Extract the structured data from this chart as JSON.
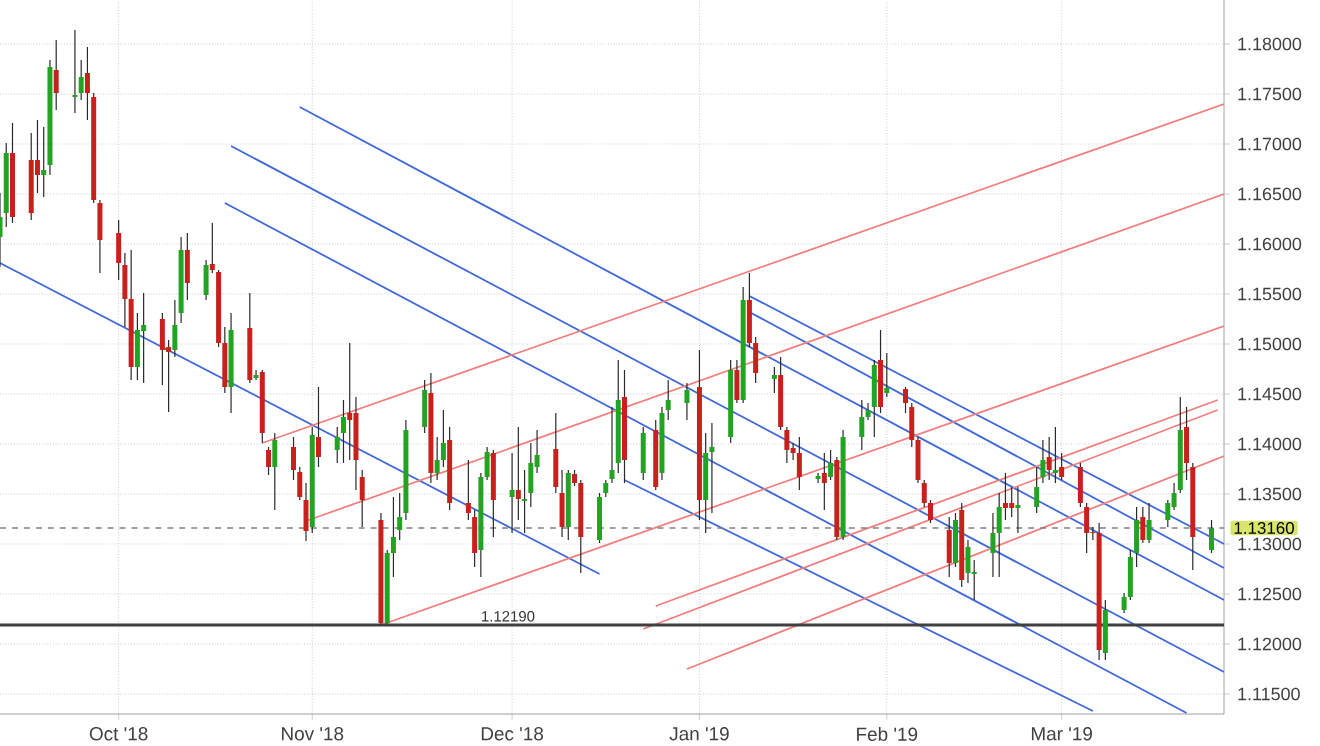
{
  "chart_data": {
    "type": "candlestick",
    "x": [
      "2018-09-12",
      "2018-09-13",
      "2018-09-14",
      "2018-09-17",
      "2018-09-18",
      "2018-09-19",
      "2018-09-20",
      "2018-09-21",
      "2018-09-24",
      "2018-09-25",
      "2018-09-26",
      "2018-09-27",
      "2018-09-28",
      "2018-10-01",
      "2018-10-02",
      "2018-10-03",
      "2018-10-04",
      "2018-10-05",
      "2018-10-08",
      "2018-10-09",
      "2018-10-10",
      "2018-10-11",
      "2018-10-12",
      "2018-10-15",
      "2018-10-16",
      "2018-10-17",
      "2018-10-18",
      "2018-10-19",
      "2018-10-22",
      "2018-10-23",
      "2018-10-24",
      "2018-10-25",
      "2018-10-26",
      "2018-10-29",
      "2018-10-30",
      "2018-10-31",
      "2018-11-01",
      "2018-11-02",
      "2018-11-05",
      "2018-11-06",
      "2018-11-07",
      "2018-11-08",
      "2018-11-09",
      "2018-11-12",
      "2018-11-13",
      "2018-11-14",
      "2018-11-15",
      "2018-11-16",
      "2018-11-19",
      "2018-11-20",
      "2018-11-21",
      "2018-11-22",
      "2018-11-23",
      "2018-11-26",
      "2018-11-27",
      "2018-11-28",
      "2018-11-29",
      "2018-11-30",
      "2018-12-03",
      "2018-12-04",
      "2018-12-05",
      "2018-12-06",
      "2018-12-07",
      "2018-12-10",
      "2018-12-11",
      "2018-12-12",
      "2018-12-13",
      "2018-12-14",
      "2018-12-17",
      "2018-12-18",
      "2018-12-19",
      "2018-12-20",
      "2018-12-21",
      "2018-12-24",
      "2018-12-26",
      "2018-12-27",
      "2018-12-28",
      "2018-12-31",
      "2019-01-02",
      "2019-01-03",
      "2019-01-04",
      "2019-01-07",
      "2019-01-08",
      "2019-01-09",
      "2019-01-10",
      "2019-01-11",
      "2019-01-14",
      "2019-01-15",
      "2019-01-16",
      "2019-01-17",
      "2019-01-18",
      "2019-01-21",
      "2019-01-22",
      "2019-01-23",
      "2019-01-24",
      "2019-01-25",
      "2019-01-28",
      "2019-01-29",
      "2019-01-30",
      "2019-01-31",
      "2019-02-01",
      "2019-02-04",
      "2019-02-05",
      "2019-02-06",
      "2019-02-07",
      "2019-02-08",
      "2019-02-11",
      "2019-02-12",
      "2019-02-13",
      "2019-02-14",
      "2019-02-15",
      "2019-02-18",
      "2019-02-19",
      "2019-02-20",
      "2019-02-21",
      "2019-02-22",
      "2019-02-25",
      "2019-02-26",
      "2019-02-27",
      "2019-02-28",
      "2019-03-01",
      "2019-03-04",
      "2019-03-05",
      "2019-03-06",
      "2019-03-07",
      "2019-03-08",
      "2019-03-11",
      "2019-03-12",
      "2019-03-13",
      "2019-03-14",
      "2019-03-15",
      "2019-03-18",
      "2019-03-19",
      "2019-03-20",
      "2019-03-21",
      "2019-03-22",
      "2019-03-25"
    ],
    "ohlc": [
      [
        1.1607,
        1.1651,
        1.1577,
        1.1627
      ],
      [
        1.1631,
        1.1701,
        1.1617,
        1.1691
      ],
      [
        1.1691,
        1.1721,
        1.1621,
        1.1627
      ],
      [
        1.1684,
        1.1711,
        1.1624,
        1.1631
      ],
      [
        1.1684,
        1.1724,
        1.1651,
        1.1669
      ],
      [
        1.1669,
        1.1717,
        1.1647,
        1.1674
      ],
      [
        1.1679,
        1.1784,
        1.1669,
        1.1777
      ],
      [
        1.1774,
        1.1804,
        1.1734,
        1.1751
      ],
      [
        1.1747,
        1.1814,
        1.1731,
        1.1749
      ],
      [
        1.1751,
        1.1784,
        1.1744,
        1.1767
      ],
      [
        1.1771,
        1.1797,
        1.1724,
        1.1751
      ],
      [
        1.1747,
        1.1751,
        1.1641,
        1.1644
      ],
      [
        1.1641,
        1.1644,
        1.1571,
        1.1604
      ],
      [
        1.1611,
        1.1624,
        1.1564,
        1.1581
      ],
      [
        1.1579,
        1.1591,
        1.1517,
        1.1545
      ],
      [
        1.1545,
        1.1594,
        1.1464,
        1.1477
      ],
      [
        1.1477,
        1.1531,
        1.1464,
        1.1514
      ],
      [
        1.1513,
        1.1551,
        1.1461,
        1.1519
      ],
      [
        1.1525,
        1.1531,
        1.1459,
        1.1494
      ],
      [
        1.1497,
        1.1504,
        1.1432,
        1.1492
      ],
      [
        1.1494,
        1.1544,
        1.1487,
        1.1519
      ],
      [
        1.1531,
        1.1607,
        1.1521,
        1.1594
      ],
      [
        1.1594,
        1.1611,
        1.1544,
        1.1561
      ],
      [
        1.1549,
        1.1584,
        1.1544,
        1.1579
      ],
      [
        1.158,
        1.1621,
        1.1571,
        1.1574
      ],
      [
        1.1572,
        1.1574,
        1.1497,
        1.1501
      ],
      [
        1.1501,
        1.1517,
        1.1451,
        1.1457
      ],
      [
        1.1457,
        1.1531,
        1.1431,
        1.1514
      ],
      [
        1.1516,
        1.1551,
        1.1461,
        1.1464
      ],
      [
        1.1466,
        1.1474,
        1.1464,
        1.1469
      ],
      [
        1.1472,
        1.1474,
        1.1401,
        1.1411
      ],
      [
        1.1394,
        1.1397,
        1.1369,
        1.1377
      ],
      [
        1.1377,
        1.1411,
        1.1334,
        1.1404
      ],
      [
        1.1397,
        1.1407,
        1.1364,
        1.1374
      ],
      [
        1.1372,
        1.1377,
        1.1344,
        1.1347
      ],
      [
        1.1344,
        1.1361,
        1.1303,
        1.1313
      ],
      [
        1.1317,
        1.1417,
        1.1311,
        1.1409
      ],
      [
        1.1407,
        1.1457,
        1.1377,
        1.1387
      ],
      [
        1.1394,
        1.1417,
        1.1381,
        1.1407
      ],
      [
        1.1411,
        1.1444,
        1.1381,
        1.1427
      ],
      [
        1.1431,
        1.1501,
        1.1384,
        1.1424
      ],
      [
        1.1431,
        1.1447,
        1.1354,
        1.1384
      ],
      [
        1.1367,
        1.1374,
        1.1317,
        1.1344
      ],
      [
        1.1324,
        1.1331,
        1.1219,
        1.1221
      ],
      [
        1.1221,
        1.1294,
        1.122,
        1.1291
      ],
      [
        1.1291,
        1.1347,
        1.1267,
        1.1307
      ],
      [
        1.1314,
        1.1351,
        1.1304,
        1.1327
      ],
      [
        1.1331,
        1.1424,
        1.1324,
        1.1414
      ],
      [
        1.1417,
        1.1464,
        1.1411,
        1.1454
      ],
      [
        1.1451,
        1.1471,
        1.1361,
        1.1371
      ],
      [
        1.1371,
        1.1407,
        1.1364,
        1.1384
      ],
      [
        1.1384,
        1.1434,
        1.1377,
        1.1401
      ],
      [
        1.1404,
        1.1417,
        1.1334,
        1.1341
      ],
      [
        1.1341,
        1.1384,
        1.1324,
        1.1331
      ],
      [
        1.1327,
        1.1334,
        1.1277,
        1.1291
      ],
      [
        1.1294,
        1.1371,
        1.1267,
        1.1367
      ],
      [
        1.1367,
        1.1397,
        1.1364,
        1.1392
      ],
      [
        1.1391,
        1.1394,
        1.1307,
        1.1344
      ],
      [
        1.1347,
        1.1391,
        1.1311,
        1.1354
      ],
      [
        1.1354,
        1.1417,
        1.1324,
        1.1345
      ],
      [
        1.1343,
        1.1374,
        1.1311,
        1.1345
      ],
      [
        1.1351,
        1.1401,
        1.1337,
        1.1381
      ],
      [
        1.1377,
        1.1414,
        1.1371,
        1.1389
      ],
      [
        1.1395,
        1.1431,
        1.1351,
        1.1357
      ],
      [
        1.1351,
        1.1374,
        1.1307,
        1.1317
      ],
      [
        1.1317,
        1.1374,
        1.1304,
        1.1371
      ],
      [
        1.137,
        1.1374,
        1.1358,
        1.1361
      ],
      [
        1.1361,
        1.1364,
        1.1271,
        1.1307
      ],
      [
        1.1304,
        1.1351,
        1.1301,
        1.1347
      ],
      [
        1.1351,
        1.1364,
        1.1347,
        1.1361
      ],
      [
        1.1365,
        1.1437,
        1.1361,
        1.1374
      ],
      [
        1.1381,
        1.1484,
        1.1371,
        1.1444
      ],
      [
        1.1447,
        1.1474,
        1.1361,
        1.1384
      ],
      [
        1.1371,
        1.1417,
        1.1364,
        1.1411
      ],
      [
        1.1414,
        1.1424,
        1.1354,
        1.1357
      ],
      [
        1.1371,
        1.1437,
        1.1364,
        1.1431
      ],
      [
        1.1434,
        1.1464,
        1.1424,
        1.1444
      ],
      [
        1.1441,
        1.1461,
        1.1424,
        1.1454
      ],
      [
        1.1457,
        1.1494,
        1.1324,
        1.1344
      ],
      [
        1.1344,
        1.1411,
        1.1311,
        1.1391
      ],
      [
        1.1392,
        1.1421,
        1.1331,
        1.1397
      ],
      [
        1.1407,
        1.1484,
        1.1401,
        1.1474
      ],
      [
        1.1474,
        1.1484,
        1.1441,
        1.1444
      ],
      [
        1.1444,
        1.1557,
        1.1441,
        1.1544
      ],
      [
        1.1544,
        1.1571,
        1.1497,
        1.1501
      ],
      [
        1.1501,
        1.1507,
        1.1461,
        1.1471
      ],
      [
        1.1465,
        1.1477,
        1.1451,
        1.1469
      ],
      [
        1.1469,
        1.1487,
        1.1414,
        1.1417
      ],
      [
        1.1414,
        1.1417,
        1.1381,
        1.1394
      ],
      [
        1.1396,
        1.1401,
        1.1384,
        1.1391
      ],
      [
        1.1391,
        1.1407,
        1.1354,
        1.1367
      ],
      [
        1.1365,
        1.1371,
        1.1361,
        1.1368
      ],
      [
        1.1371,
        1.1391,
        1.1334,
        1.1361
      ],
      [
        1.1367,
        1.1394,
        1.1364,
        1.1381
      ],
      [
        1.1384,
        1.1387,
        1.1304,
        1.1307
      ],
      [
        1.1307,
        1.1414,
        1.1304,
        1.1407
      ],
      [
        1.1407,
        1.1444,
        1.1394,
        1.1427
      ],
      [
        1.1427,
        1.1441,
        1.1424,
        1.1434
      ],
      [
        1.1437,
        1.1484,
        1.1407,
        1.1479
      ],
      [
        1.1484,
        1.1514,
        1.1431,
        1.1437
      ],
      [
        1.1451,
        1.1491,
        1.1447,
        1.1456
      ],
      [
        1.1455,
        1.1457,
        1.1431,
        1.1441
      ],
      [
        1.1437,
        1.1441,
        1.1397,
        1.1404
      ],
      [
        1.1404,
        1.1407,
        1.1361,
        1.1364
      ],
      [
        1.1361,
        1.1364,
        1.1337,
        1.1341
      ],
      [
        1.1341,
        1.1344,
        1.1321,
        1.1324
      ],
      [
        1.1314,
        1.1327,
        1.1267,
        1.1281
      ],
      [
        1.1281,
        1.1331,
        1.1277,
        1.1324
      ],
      [
        1.1334,
        1.1341,
        1.1257,
        1.1264
      ],
      [
        1.1271,
        1.1304,
        1.1261,
        1.1297
      ],
      [
        1.127,
        1.1284,
        1.1244,
        1.1272
      ],
      [
        1.1291,
        1.1331,
        1.1267,
        1.1311
      ],
      [
        1.1311,
        1.1351,
        1.1267,
        1.1337
      ],
      [
        1.1341,
        1.1371,
        1.1324,
        1.1336
      ],
      [
        1.1341,
        1.1357,
        1.1327,
        1.1336
      ],
      [
        1.1336,
        1.1357,
        1.1311,
        1.1339
      ],
      [
        1.1337,
        1.1377,
        1.1331,
        1.1357
      ],
      [
        1.1367,
        1.1404,
        1.1361,
        1.1384
      ],
      [
        1.1387,
        1.1407,
        1.1364,
        1.1374
      ],
      [
        1.1371,
        1.1417,
        1.1361,
        1.1374
      ],
      [
        1.1377,
        1.1391,
        1.1364,
        1.1367
      ],
      [
        1.1377,
        1.1381,
        1.1337,
        1.1341
      ],
      [
        1.1337,
        1.1341,
        1.1291,
        1.1311
      ],
      [
        1.1312,
        1.1317,
        1.1304,
        1.1311
      ],
      [
        1.1311,
        1.1321,
        1.1184,
        1.1194
      ],
      [
        1.1191,
        1.1244,
        1.1184,
        1.1234
      ],
      [
        1.1234,
        1.1251,
        1.1231,
        1.1247
      ],
      [
        1.1247,
        1.1294,
        1.1244,
        1.1287
      ],
      [
        1.1291,
        1.1337,
        1.1277,
        1.1324
      ],
      [
        1.1327,
        1.1337,
        1.1301,
        1.1304
      ],
      [
        1.1304,
        1.1341,
        1.1301,
        1.1324
      ],
      [
        1.1324,
        1.1344,
        1.1317,
        1.1341
      ],
      [
        1.1337,
        1.1361,
        1.1334,
        1.1351
      ],
      [
        1.1354,
        1.1447,
        1.1351,
        1.1414
      ],
      [
        1.1417,
        1.1437,
        1.1364,
        1.1381
      ],
      [
        1.1377,
        1.1381,
        1.1274,
        1.1307
      ],
      [
        1.1294,
        1.1324,
        1.1291,
        1.1316
      ]
    ],
    "series": [
      {
        "type": "line",
        "color": "#4169d8",
        "x": [
          "2018-09-12",
          "2018-12-17"
        ],
        "values": [
          1.1581,
          1.127
        ]
      },
      {
        "type": "line",
        "color": "#4169d8",
        "x": [
          "2018-10-30",
          "2019-03-27"
        ],
        "values": [
          1.1737,
          1.1244
        ]
      },
      {
        "type": "line",
        "color": "#4169d8",
        "x": [
          "2018-10-19",
          "2019-03-27"
        ],
        "values": [
          1.1698,
          1.1172
        ]
      },
      {
        "type": "line",
        "color": "#4169d8",
        "x": [
          "2018-10-18",
          "2019-03-21"
        ],
        "values": [
          1.1641,
          1.1131
        ]
      },
      {
        "type": "line",
        "color": "#4169d8",
        "x": [
          "2019-01-10",
          "2019-03-27"
        ],
        "values": [
          1.1548,
          1.13
        ]
      },
      {
        "type": "line",
        "color": "#4169d8",
        "x": [
          "2019-01-10",
          "2019-03-27"
        ],
        "values": [
          1.1532,
          1.1276
        ]
      },
      {
        "type": "line",
        "color": "#4169d8",
        "x": [
          "2018-12-21",
          "2019-03-06"
        ],
        "values": [
          1.1364,
          1.1133
        ]
      },
      {
        "type": "line",
        "color": "#f08080",
        "x": [
          "2018-10-24",
          "2019-03-27"
        ],
        "values": [
          1.1401,
          1.174
        ]
      },
      {
        "type": "line",
        "color": "#f08080",
        "x": [
          "2018-10-31",
          "2019-03-27"
        ],
        "values": [
          1.1323,
          1.165
        ]
      },
      {
        "type": "line",
        "color": "#f08080",
        "x": [
          "2018-11-12",
          "2019-03-27"
        ],
        "values": [
          1.1219,
          1.1518
        ]
      },
      {
        "type": "line",
        "color": "#f08080",
        "x": [
          "2018-12-26",
          "2019-03-26"
        ],
        "values": [
          1.1238,
          1.1444
        ]
      },
      {
        "type": "line",
        "color": "#f08080",
        "x": [
          "2018-12-24",
          "2019-03-26"
        ],
        "values": [
          1.1215,
          1.1434
        ]
      },
      {
        "type": "line",
        "color": "#f08080",
        "x": [
          "2018-12-31",
          "2019-03-27"
        ],
        "values": [
          1.1175,
          1.1388
        ]
      }
    ],
    "ref_lines": [
      {
        "axis": "y",
        "value": 1.1219,
        "label": "1.12190",
        "color": "#404040",
        "line_style": "solid"
      },
      {
        "axis": "y",
        "value": 1.1316,
        "label": "1.13160",
        "color": "#808080",
        "line_style": "dashed"
      }
    ],
    "xlim": [
      "2018-09-12",
      "2019-03-27"
    ],
    "ylim": [
      1.113,
      1.1844
    ],
    "xticks": [
      {
        "value": "2018-10-01",
        "label": "Oct '18"
      },
      {
        "value": "2018-11-01",
        "label": "Nov '18"
      },
      {
        "value": "2018-12-03",
        "label": "Dec '18"
      },
      {
        "value": "2019-01-02",
        "label": "Jan '19"
      },
      {
        "value": "2019-02-01",
        "label": "Feb '19"
      },
      {
        "value": "2019-03-01",
        "label": "Mar '19"
      }
    ],
    "yticks": [
      {
        "value": 1.115,
        "label": "1.11500"
      },
      {
        "value": 1.12,
        "label": "1.12000"
      },
      {
        "value": 1.125,
        "label": "1.12500"
      },
      {
        "value": 1.13,
        "label": "1.13000"
      },
      {
        "value": 1.135,
        "label": "1.13500"
      },
      {
        "value": 1.14,
        "label": "1.14000"
      },
      {
        "value": 1.145,
        "label": "1.14500"
      },
      {
        "value": 1.15,
        "label": "1.15000"
      },
      {
        "value": 1.155,
        "label": "1.15500"
      },
      {
        "value": 1.16,
        "label": "1.16000"
      },
      {
        "value": 1.165,
        "label": "1.16500"
      },
      {
        "value": 1.17,
        "label": "1.17000"
      },
      {
        "value": 1.175,
        "label": "1.17500"
      },
      {
        "value": 1.18,
        "label": "1.18000"
      }
    ],
    "grid": true
  }
}
